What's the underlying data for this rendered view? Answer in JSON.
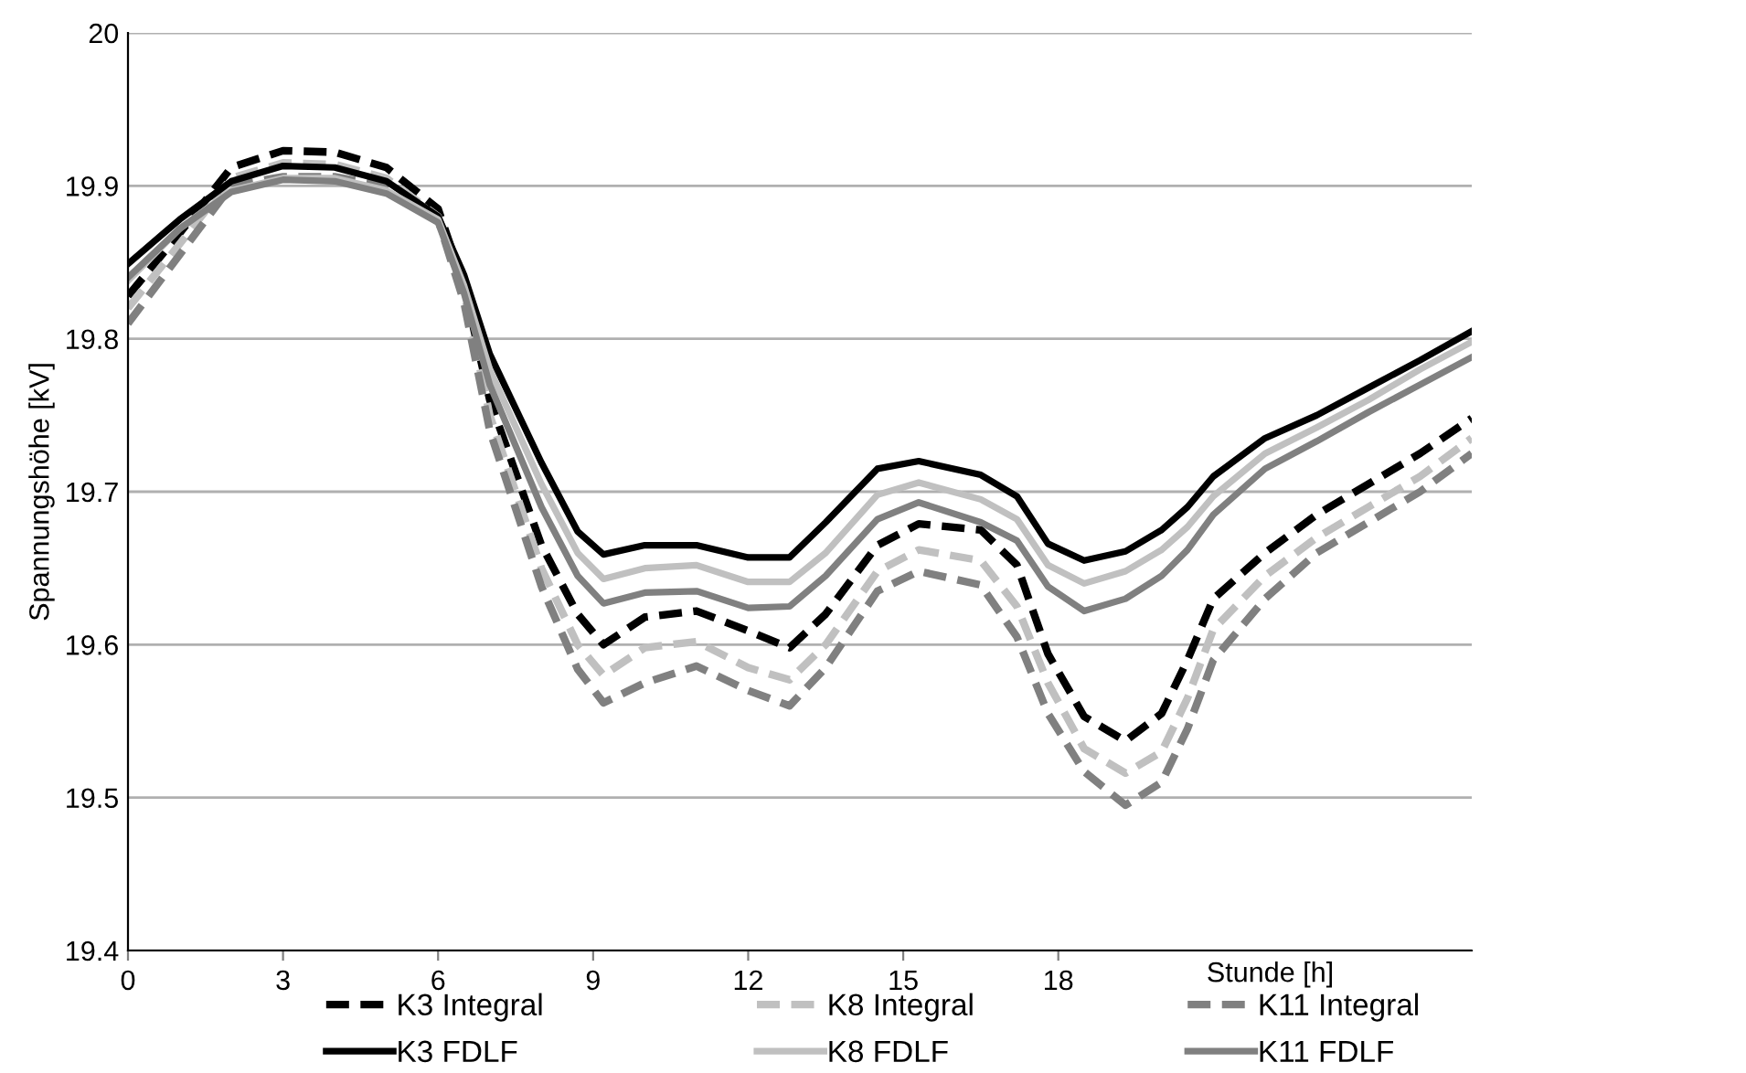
{
  "chart_data": {
    "type": "line",
    "xlabel": "Stunde [h]",
    "ylabel": "Spannungshöhe [kV]",
    "x": [
      0,
      1,
      2,
      3,
      4,
      5,
      6,
      6.5,
      7,
      8,
      8.7,
      9.2,
      10,
      11,
      12,
      12.8,
      13.5,
      14.5,
      15.3,
      16.5,
      17.2,
      17.8,
      18.5,
      19.3,
      20,
      20.5,
      21,
      22,
      23,
      24,
      25,
      26
    ],
    "series": [
      {
        "name": "K3 Integral",
        "color": "#000000",
        "line_style": "dashed",
        "values": [
          19.828,
          19.869,
          19.912,
          19.923,
          19.922,
          19.912,
          19.885,
          19.835,
          19.76,
          19.665,
          19.62,
          19.6,
          19.618,
          19.622,
          19.609,
          19.598,
          19.62,
          19.665,
          19.679,
          19.675,
          19.652,
          19.594,
          19.553,
          19.537,
          19.555,
          19.59,
          19.63,
          19.66,
          19.685,
          19.705,
          19.725,
          19.748
        ]
      },
      {
        "name": "K8 Integral",
        "color": "#c0c0c0",
        "line_style": "dashed",
        "values": [
          19.82,
          19.862,
          19.905,
          19.915,
          19.914,
          19.905,
          19.88,
          19.83,
          19.75,
          19.65,
          19.6,
          19.58,
          19.598,
          19.602,
          19.585,
          19.577,
          19.6,
          19.648,
          19.662,
          19.655,
          19.625,
          19.575,
          19.532,
          19.516,
          19.53,
          19.565,
          19.61,
          19.645,
          19.67,
          19.69,
          19.71,
          19.735
        ]
      },
      {
        "name": "K11 Integral",
        "color": "#808080",
        "line_style": "dashed",
        "values": [
          19.81,
          19.855,
          19.9,
          19.906,
          19.906,
          19.9,
          19.878,
          19.824,
          19.74,
          19.638,
          19.584,
          19.562,
          19.575,
          19.586,
          19.57,
          19.56,
          19.585,
          19.635,
          19.648,
          19.639,
          19.605,
          19.555,
          19.517,
          19.495,
          19.51,
          19.545,
          19.59,
          19.63,
          19.66,
          19.68,
          19.7,
          19.725
        ]
      },
      {
        "name": "K3 FDLF",
        "color": "#000000",
        "line_style": "solid",
        "values": [
          19.849,
          19.878,
          19.903,
          19.913,
          19.912,
          19.903,
          19.88,
          19.842,
          19.79,
          19.719,
          19.674,
          19.659,
          19.665,
          19.665,
          19.657,
          19.657,
          19.68,
          19.715,
          19.72,
          19.711,
          19.697,
          19.666,
          19.655,
          19.661,
          19.675,
          19.69,
          19.71,
          19.735,
          19.75,
          19.768,
          19.786,
          19.805
        ]
      },
      {
        "name": "K8 FDLF",
        "color": "#c0c0c0",
        "line_style": "solid",
        "values": [
          19.838,
          19.872,
          19.897,
          19.905,
          19.905,
          19.897,
          19.878,
          19.835,
          19.78,
          19.705,
          19.66,
          19.643,
          19.65,
          19.652,
          19.641,
          19.641,
          19.66,
          19.698,
          19.706,
          19.695,
          19.682,
          19.652,
          19.64,
          19.648,
          19.662,
          19.677,
          19.697,
          19.725,
          19.742,
          19.76,
          19.78,
          19.798
        ]
      },
      {
        "name": "K11 FDLF",
        "color": "#808080",
        "line_style": "solid",
        "values": [
          19.84,
          19.872,
          19.896,
          19.904,
          19.903,
          19.895,
          19.876,
          19.83,
          19.77,
          19.69,
          19.645,
          19.627,
          19.634,
          19.635,
          19.624,
          19.625,
          19.645,
          19.682,
          19.693,
          19.68,
          19.668,
          19.638,
          19.622,
          19.63,
          19.645,
          19.662,
          19.685,
          19.715,
          19.733,
          19.752,
          19.77,
          19.788
        ]
      }
    ],
    "xlim": [
      0,
      26
    ],
    "xticks": [
      0,
      3,
      6,
      9,
      12,
      15,
      18
    ],
    "ylim": [
      19.4,
      20
    ],
    "yticks": [
      19.4,
      19.5,
      19.6,
      19.7,
      19.8,
      19.9,
      20
    ],
    "grid": "y",
    "legend": "bottom",
    "marker": "none"
  }
}
